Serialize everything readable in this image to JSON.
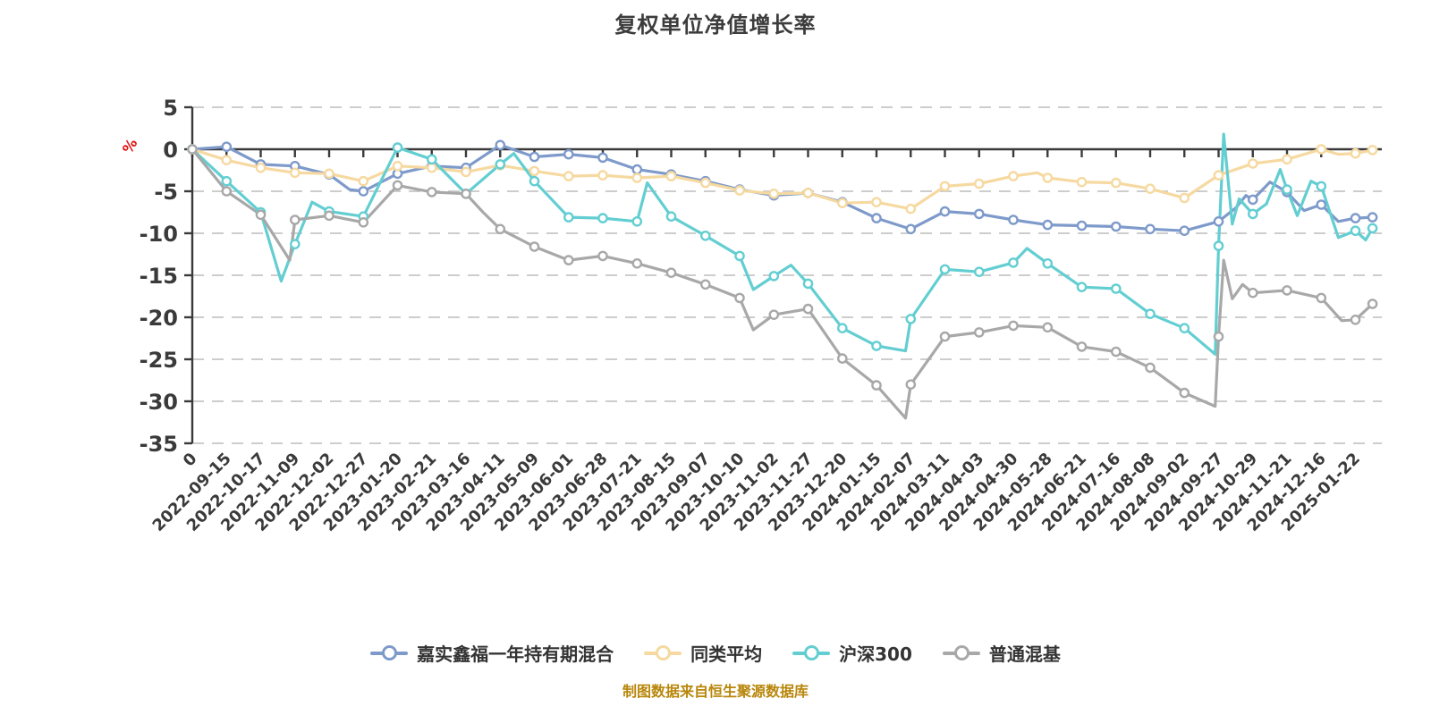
{
  "header": {
    "title": "复权单位净值增长率"
  },
  "footer": {
    "source_note": "制图数据来自恒生聚源数据库",
    "color": "#b8860b"
  },
  "chart_data": {
    "type": "line",
    "title": "复权单位净值增长率",
    "ylabel": "%",
    "ylabel_color": "#e01010",
    "ylim": [
      -35,
      5
    ],
    "ytick_step": 5,
    "grid": "horizontal dashed",
    "legend_position": "bottom",
    "background": "#ffffff",
    "grid_color": "#cdcdcd",
    "axis_color": "#3a3a3a",
    "marker": {
      "fill": "#ffffff",
      "radius": 4.6
    },
    "yticks": [
      {
        "label": "5",
        "value": 5
      },
      {
        "label": "0",
        "value": 0
      },
      {
        "label": "-5",
        "value": -5
      },
      {
        "label": "-10",
        "value": -10
      },
      {
        "label": "-15",
        "value": -15
      },
      {
        "label": "-20",
        "value": -20
      },
      {
        "label": "-25",
        "value": -25
      },
      {
        "label": "-30",
        "value": -30
      },
      {
        "label": "-35",
        "value": -35
      }
    ],
    "categories": [
      "0",
      "2022-09-15",
      "2022-10-17",
      "2022-11-09",
      "2022-12-02",
      "2022-12-27",
      "2023-01-20",
      "2023-02-21",
      "2023-03-16",
      "2023-04-11",
      "2023-05-09",
      "2023-06-01",
      "2023-06-28",
      "2023-07-21",
      "2023-08-15",
      "2023-09-07",
      "2023-10-10",
      "2023-11-02",
      "2023-11-27",
      "2023-12-20",
      "2024-01-15",
      "2024-02-07",
      "2024-03-11",
      "2024-04-03",
      "2024-04-30",
      "2024-05-28",
      "2024-06-21",
      "2024-07-16",
      "2024-08-08",
      "2024-09-02",
      "2024-09-27",
      "2024-10-29",
      "2024-11-21",
      "2024-12-16",
      "2025-01-22"
    ],
    "series": [
      {
        "id": "jiashi-xinfu-fund",
        "name": "嘉实鑫福一年持有期混合",
        "color": "#7e9aca",
        "points": [
          [
            0,
            0
          ],
          [
            1,
            0.3
          ],
          [
            2,
            -1.8
          ],
          [
            3,
            -2
          ],
          [
            4,
            -3
          ],
          [
            4.6,
            -4.8
          ],
          [
            5,
            -5
          ],
          [
            6,
            -2.9
          ],
          [
            7,
            -2
          ],
          [
            8,
            -2.2
          ],
          [
            9,
            0.5
          ],
          [
            10,
            -0.9
          ],
          [
            11,
            -0.6
          ],
          [
            12,
            -1
          ],
          [
            13,
            -2.4
          ],
          [
            14,
            -3
          ],
          [
            15,
            -3.8
          ],
          [
            16,
            -4.8
          ],
          [
            17,
            -5.5
          ],
          [
            18,
            -5.2
          ],
          [
            19,
            -6.3
          ],
          [
            20,
            -8.2
          ],
          [
            21,
            -9.5
          ],
          [
            22,
            -7.4
          ],
          [
            23,
            -7.7
          ],
          [
            24,
            -8.4
          ],
          [
            25,
            -9
          ],
          [
            26,
            -9.1
          ],
          [
            27,
            -9.2
          ],
          [
            28,
            -9.5
          ],
          [
            29,
            -9.7
          ],
          [
            30,
            -8.6
          ],
          [
            30.5,
            -7
          ],
          [
            30.8,
            -5.5
          ],
          [
            31,
            -6
          ],
          [
            31.5,
            -3.9
          ],
          [
            32,
            -5.1
          ],
          [
            32.5,
            -7.3
          ],
          [
            33,
            -6.6
          ],
          [
            33.5,
            -8.6
          ],
          [
            34,
            -8.2
          ],
          [
            34.5,
            -8.1
          ]
        ]
      },
      {
        "id": "peer-average",
        "name": "同类平均",
        "color": "#f6d9a0",
        "points": [
          [
            0,
            0
          ],
          [
            1,
            -1.3
          ],
          [
            2,
            -2.2
          ],
          [
            3,
            -2.8
          ],
          [
            4,
            -2.9
          ],
          [
            5,
            -3.8
          ],
          [
            6,
            -2
          ],
          [
            7,
            -2.2
          ],
          [
            8,
            -2.7
          ],
          [
            9,
            -1.9
          ],
          [
            10,
            -2.6
          ],
          [
            11,
            -3.2
          ],
          [
            12,
            -3.1
          ],
          [
            13,
            -3.4
          ],
          [
            14,
            -3.2
          ],
          [
            15,
            -4
          ],
          [
            16,
            -4.9
          ],
          [
            17,
            -5.3
          ],
          [
            18,
            -5.2
          ],
          [
            19,
            -6.4
          ],
          [
            20,
            -6.3
          ],
          [
            21,
            -7.1
          ],
          [
            22,
            -4.4
          ],
          [
            23,
            -4.1
          ],
          [
            24,
            -3.2
          ],
          [
            24.7,
            -2.8
          ],
          [
            25,
            -3.4
          ],
          [
            26,
            -3.9
          ],
          [
            27,
            -4
          ],
          [
            28,
            -4.7
          ],
          [
            29,
            -5.8
          ],
          [
            30,
            -3.1
          ],
          [
            31,
            -1.7
          ],
          [
            32,
            -1.2
          ],
          [
            33,
            0
          ],
          [
            33.5,
            -0.6
          ],
          [
            34,
            -0.5
          ],
          [
            34.5,
            -0.1
          ]
        ]
      },
      {
        "id": "csi300",
        "name": "沪深300",
        "color": "#63ced2",
        "points": [
          [
            0,
            0
          ],
          [
            1,
            -3.8
          ],
          [
            2,
            -7.5
          ],
          [
            2.6,
            -15.7
          ],
          [
            3,
            -11.3
          ],
          [
            3.5,
            -6.3
          ],
          [
            4,
            -7.4
          ],
          [
            5,
            -8
          ],
          [
            6,
            0.2
          ],
          [
            7,
            -1.2
          ],
          [
            8,
            -5.3
          ],
          [
            9,
            -1.8
          ],
          [
            9.4,
            -0.5
          ],
          [
            10,
            -3.8
          ],
          [
            11,
            -8.1
          ],
          [
            12,
            -8.2
          ],
          [
            13,
            -8.6
          ],
          [
            13.3,
            -4
          ],
          [
            14,
            -8
          ],
          [
            15,
            -10.3
          ],
          [
            16,
            -12.7
          ],
          [
            16.4,
            -16.7
          ],
          [
            17,
            -15.1
          ],
          [
            17.5,
            -13.8
          ],
          [
            18,
            -16
          ],
          [
            19,
            -21.3
          ],
          [
            20,
            -23.4
          ],
          [
            20.85,
            -24
          ],
          [
            21,
            -20.2
          ],
          [
            22,
            -14.3
          ],
          [
            23,
            -14.6
          ],
          [
            24,
            -13.5
          ],
          [
            24.4,
            -11.8
          ],
          [
            25,
            -13.6
          ],
          [
            26,
            -16.4
          ],
          [
            27,
            -16.6
          ],
          [
            28,
            -19.6
          ],
          [
            29,
            -21.3
          ],
          [
            29.9,
            -24.4
          ],
          [
            30,
            -11.5
          ],
          [
            30.15,
            1.8
          ],
          [
            30.4,
            -8.9
          ],
          [
            30.6,
            -5.9
          ],
          [
            31,
            -7.7
          ],
          [
            31.4,
            -6.5
          ],
          [
            31.8,
            -2.4
          ],
          [
            32,
            -4.8
          ],
          [
            32.3,
            -7.9
          ],
          [
            32.7,
            -3.8
          ],
          [
            33,
            -4.4
          ],
          [
            33.5,
            -10.5
          ],
          [
            34,
            -9.7
          ],
          [
            34.3,
            -10.8
          ],
          [
            34.5,
            -9.4
          ]
        ]
      },
      {
        "id": "ordinary-mixed-fund",
        "name": "普通混基",
        "color": "#a8a8a8",
        "points": [
          [
            0,
            0
          ],
          [
            1,
            -5
          ],
          [
            2,
            -7.8
          ],
          [
            2.85,
            -13.2
          ],
          [
            3,
            -8.4
          ],
          [
            4,
            -7.9
          ],
          [
            5,
            -8.7
          ],
          [
            6,
            -4.3
          ],
          [
            7,
            -5.1
          ],
          [
            8,
            -5.3
          ],
          [
            8.5,
            -7.5
          ],
          [
            9,
            -9.5
          ],
          [
            10,
            -11.6
          ],
          [
            11,
            -13.2
          ],
          [
            12,
            -12.7
          ],
          [
            13,
            -13.6
          ],
          [
            14,
            -14.7
          ],
          [
            15,
            -16.1
          ],
          [
            16,
            -17.7
          ],
          [
            16.4,
            -21.5
          ],
          [
            17,
            -19.7
          ],
          [
            18,
            -19
          ],
          [
            19,
            -24.9
          ],
          [
            20,
            -28.1
          ],
          [
            20.85,
            -32
          ],
          [
            21,
            -28
          ],
          [
            22,
            -22.3
          ],
          [
            23,
            -21.8
          ],
          [
            24,
            -21
          ],
          [
            25,
            -21.2
          ],
          [
            26,
            -23.5
          ],
          [
            27,
            -24.1
          ],
          [
            28,
            -26
          ],
          [
            29,
            -29
          ],
          [
            29.9,
            -30.6
          ],
          [
            30,
            -22.3
          ],
          [
            30.15,
            -13.2
          ],
          [
            30.4,
            -17.8
          ],
          [
            30.7,
            -16.1
          ],
          [
            31,
            -17.1
          ],
          [
            32,
            -16.8
          ],
          [
            33,
            -17.7
          ],
          [
            33.6,
            -20.4
          ],
          [
            34,
            -20.3
          ],
          [
            34.5,
            -18.4
          ]
        ]
      }
    ]
  }
}
